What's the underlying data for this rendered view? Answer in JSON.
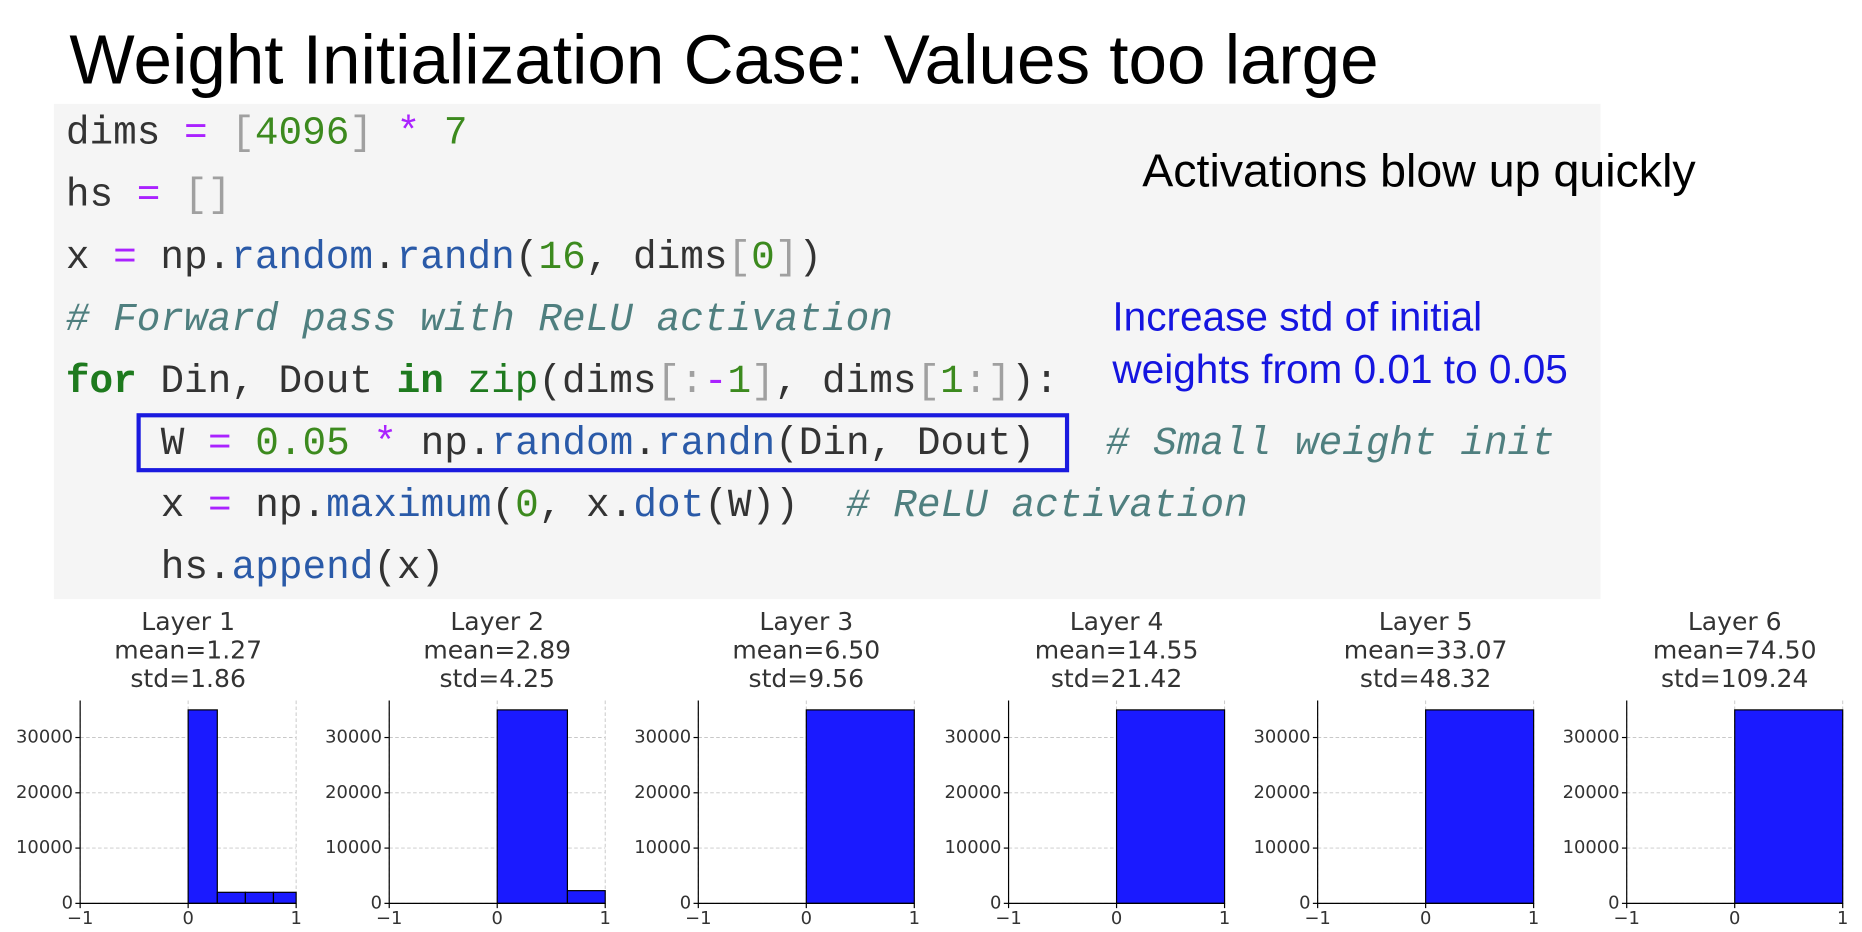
{
  "title": "Weight Initialization Case: Values too large",
  "code": {
    "lines": [
      [
        {
          "text": "dims",
          "color": "#333333"
        },
        {
          "text": " = ",
          "color": "#aa22ff"
        },
        {
          "text": "[",
          "color": "#a0a0a0"
        },
        {
          "text": "4096",
          "color": "#3c8a1e"
        },
        {
          "text": "]",
          "color": "#a0a0a0"
        },
        {
          "text": " * ",
          "color": "#aa22ff"
        },
        {
          "text": "7",
          "color": "#3c8a1e"
        }
      ],
      [
        {
          "text": "hs",
          "color": "#333333"
        },
        {
          "text": " = ",
          "color": "#aa22ff"
        },
        {
          "text": "[]",
          "color": "#a0a0a0"
        }
      ],
      [
        {
          "text": "x",
          "color": "#333333"
        },
        {
          "text": " = ",
          "color": "#aa22ff"
        },
        {
          "text": "np.",
          "color": "#333333"
        },
        {
          "text": "random",
          "color": "#2a5aa8"
        },
        {
          "text": ".",
          "color": "#333333"
        },
        {
          "text": "randn",
          "color": "#2a5aa8"
        },
        {
          "text": "(",
          "color": "#333333"
        },
        {
          "text": "16",
          "color": "#3c8a1e"
        },
        {
          "text": ", dims",
          "color": "#333333"
        },
        {
          "text": "[",
          "color": "#a0a0a0"
        },
        {
          "text": "0",
          "color": "#3c8a1e"
        },
        {
          "text": "]",
          "color": "#a0a0a0"
        },
        {
          "text": ")",
          "color": "#333333"
        }
      ],
      [
        {
          "text": "# Forward pass with ReLU activation",
          "color": "#4f7f7f",
          "italic": true
        }
      ],
      [
        {
          "text": "for",
          "color": "#1e7a1e",
          "bold": true
        },
        {
          "text": " Din, Dout ",
          "color": "#333333"
        },
        {
          "text": "in",
          "color": "#1e7a1e",
          "bold": true
        },
        {
          "text": " zip",
          "color": "#1e7a1e"
        },
        {
          "text": "(dims",
          "color": "#333333"
        },
        {
          "text": "[:",
          "color": "#a0a0a0"
        },
        {
          "text": "-",
          "color": "#aa22ff"
        },
        {
          "text": "1",
          "color": "#3c8a1e"
        },
        {
          "text": "]",
          "color": "#a0a0a0"
        },
        {
          "text": ", dims",
          "color": "#333333"
        },
        {
          "text": "[",
          "color": "#a0a0a0"
        },
        {
          "text": "1",
          "color": "#3c8a1e"
        },
        {
          "text": ":]",
          "color": "#a0a0a0"
        },
        {
          "text": "):",
          "color": "#333333"
        }
      ],
      [
        {
          "text": "W",
          "color": "#333333"
        },
        {
          "text": " = ",
          "color": "#aa22ff"
        },
        {
          "text": "0.05",
          "color": "#3c8a1e"
        },
        {
          "text": " * ",
          "color": "#aa22ff"
        },
        {
          "text": "np.",
          "color": "#333333"
        },
        {
          "text": "random",
          "color": "#2a5aa8"
        },
        {
          "text": ".",
          "color": "#333333"
        },
        {
          "text": "randn",
          "color": "#2a5aa8"
        },
        {
          "text": "(Din, Dout)",
          "color": "#333333"
        },
        {
          "text": "   # Small weight init",
          "color": "#4f7f7f",
          "italic": true
        }
      ],
      [
        {
          "text": "x",
          "color": "#333333"
        },
        {
          "text": " = ",
          "color": "#aa22ff"
        },
        {
          "text": "np.",
          "color": "#333333"
        },
        {
          "text": "maximum",
          "color": "#2a5aa8"
        },
        {
          "text": "(",
          "color": "#333333"
        },
        {
          "text": "0",
          "color": "#3c8a1e"
        },
        {
          "text": ", x.",
          "color": "#333333"
        },
        {
          "text": "dot",
          "color": "#2a5aa8"
        },
        {
          "text": "(W))",
          "color": "#333333"
        },
        {
          "text": "  # ReLU activation",
          "color": "#4f7f7f",
          "italic": true
        }
      ],
      [
        {
          "text": "hs.",
          "color": "#333333"
        },
        {
          "text": "append",
          "color": "#2a5aa8"
        },
        {
          "text": "(x)",
          "color": "#333333"
        }
      ]
    ]
  },
  "annotations": {
    "headline": "Activations blow up quickly",
    "note": [
      "Increase std of initial",
      "weights from 0.01 to 0.05"
    ]
  },
  "chart_data": [
    {
      "type": "histogram",
      "title_lines": [
        "Layer 1",
        "mean=1.27",
        "std=1.86"
      ],
      "bins": [
        0,
        0.27,
        0.53,
        0.79,
        1
      ],
      "values": [
        35000,
        2000,
        2000,
        2000
      ],
      "color": "#1a1aff",
      "xlim": [
        -1,
        1
      ],
      "xticks": [
        {
          "value": -1,
          "label": "−1"
        },
        0,
        1
      ],
      "ylim": [
        0,
        36700
      ],
      "yticks": [
        0,
        10000,
        20000,
        30000
      ],
      "grid": true
    },
    {
      "type": "histogram",
      "title_lines": [
        "Layer 2",
        "mean=2.89",
        "std=4.25"
      ],
      "bins": [
        0,
        0.65,
        1
      ],
      "values": [
        35000,
        2300
      ],
      "color": "#1a1aff",
      "xlim": [
        -1,
        1
      ],
      "xticks": [
        {
          "value": -1,
          "label": "−1"
        },
        0,
        1
      ],
      "ylim": [
        0,
        36700
      ],
      "yticks": [
        0,
        10000,
        20000,
        30000
      ],
      "grid": true
    },
    {
      "type": "histogram",
      "title_lines": [
        "Layer 3",
        "mean=6.50",
        "std=9.56"
      ],
      "bins": [
        0,
        1
      ],
      "values": [
        35000
      ],
      "color": "#1a1aff",
      "xlim": [
        -1,
        1
      ],
      "xticks": [
        {
          "value": -1,
          "label": "−1"
        },
        0,
        1
      ],
      "ylim": [
        0,
        36700
      ],
      "yticks": [
        0,
        10000,
        20000,
        30000
      ],
      "grid": true
    },
    {
      "type": "histogram",
      "title_lines": [
        "Layer 4",
        "mean=14.55",
        "std=21.42"
      ],
      "bins": [
        0,
        1
      ],
      "values": [
        35000
      ],
      "color": "#1a1aff",
      "xlim": [
        -1,
        1
      ],
      "xticks": [
        {
          "value": -1,
          "label": "−1"
        },
        0,
        1
      ],
      "ylim": [
        0,
        36700
      ],
      "yticks": [
        0,
        10000,
        20000,
        30000
      ],
      "grid": true
    },
    {
      "type": "histogram",
      "title_lines": [
        "Layer 5",
        "mean=33.07",
        "std=48.32"
      ],
      "bins": [
        0,
        1
      ],
      "values": [
        35000
      ],
      "color": "#1a1aff",
      "xlim": [
        -1,
        1
      ],
      "xticks": [
        {
          "value": -1,
          "label": "−1"
        },
        0,
        1
      ],
      "ylim": [
        0,
        36700
      ],
      "yticks": [
        0,
        10000,
        20000,
        30000
      ],
      "grid": true
    },
    {
      "type": "histogram",
      "title_lines": [
        "Layer 6",
        "mean=74.50",
        "std=109.24"
      ],
      "bins": [
        0,
        1
      ],
      "values": [
        35000
      ],
      "color": "#1a1aff",
      "xlim": [
        -1,
        1
      ],
      "xticks": [
        {
          "value": -1,
          "label": "−1"
        },
        0,
        1
      ],
      "ylim": [
        0,
        36700
      ],
      "yticks": [
        0,
        10000,
        20000,
        30000
      ],
      "grid": true
    }
  ]
}
